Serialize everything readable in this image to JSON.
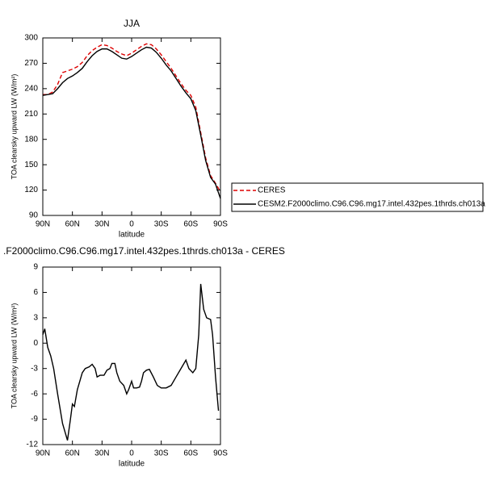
{
  "chart_data": [
    {
      "type": "line",
      "title": "JJA",
      "xlabel": "latitude",
      "ylabel": "TOA clearsky upward LW (W/m²)",
      "x": [
        90,
        85,
        80,
        75,
        70,
        65,
        60,
        55,
        50,
        45,
        40,
        35,
        30,
        25,
        20,
        15,
        10,
        5,
        0,
        -5,
        -10,
        -15,
        -20,
        -25,
        -30,
        -35,
        -40,
        -45,
        -50,
        -55,
        -60,
        -65,
        -70,
        -75,
        -80,
        -85,
        -90
      ],
      "series": [
        {
          "name": "CERES",
          "color": "#dd0000",
          "dashed": true,
          "values": [
            233,
            233,
            236,
            245,
            259,
            261,
            263,
            266,
            271,
            279,
            285,
            289,
            292,
            291,
            288,
            284,
            281,
            279,
            282,
            286,
            290,
            293,
            292,
            287,
            280,
            272,
            264,
            255,
            246,
            238,
            232,
            218,
            188,
            158,
            137,
            128,
            118
          ]
        },
        {
          "name": "CESM2.F2000climo.C96.C96.mg17.intel.432pes.1thrds.ch013a",
          "color": "#000000",
          "dashed": false,
          "values": [
            232,
            233,
            234,
            240,
            247,
            252,
            255,
            259,
            264,
            272,
            279,
            284,
            287,
            287,
            284,
            280,
            276,
            275,
            278,
            282,
            286,
            289,
            288,
            283,
            276,
            268,
            261,
            252,
            243,
            235,
            228,
            214,
            185,
            155,
            135,
            127,
            110
          ]
        }
      ],
      "xlim": [
        90,
        -90
      ],
      "xticks": [
        {
          "value": 90,
          "label": "90N"
        },
        {
          "value": 60,
          "label": "60N"
        },
        {
          "value": 30,
          "label": "30N"
        },
        0,
        {
          "value": -30,
          "label": "30S"
        },
        {
          "value": -60,
          "label": "60S"
        },
        {
          "value": -90,
          "label": "90S"
        }
      ],
      "ylim": [
        90,
        300
      ],
      "yticks": [
        90,
        120,
        150,
        180,
        210,
        240,
        270,
        300
      ],
      "legend": "outside-right"
    },
    {
      "type": "line",
      "title": ".F2000climo.C96.C96.mg17.intel.432pes.1thrds.ch013a - CERES",
      "xlabel": "latitude",
      "ylabel": "TOA clearsky upward LW (W/m²)",
      "x": [
        90,
        88,
        85,
        82,
        79,
        75,
        70,
        65,
        62,
        60,
        58,
        55,
        50,
        47,
        43,
        40,
        37,
        35,
        32,
        28,
        25,
        22,
        20,
        17,
        15,
        12,
        8,
        5,
        3,
        0,
        -2,
        -5,
        -8,
        -10,
        -12,
        -15,
        -18,
        -22,
        -26,
        -30,
        -35,
        -40,
        -45,
        -50,
        -55,
        -58,
        -62,
        -65,
        -68,
        -70,
        -73,
        -76,
        -80,
        -82,
        -85,
        -88
      ],
      "series": [
        {
          "color": "#000000",
          "dashed": false,
          "values": [
            1.0,
            1.7,
            -0.5,
            -1.5,
            -3,
            -6,
            -9.5,
            -11.5,
            -9,
            -7.2,
            -7.5,
            -5.5,
            -3.5,
            -3.0,
            -2.8,
            -2.5,
            -3,
            -4,
            -3.8,
            -3.8,
            -3.2,
            -3.0,
            -2.4,
            -2.4,
            -3.5,
            -4.5,
            -5,
            -6,
            -5.5,
            -4.5,
            -5.3,
            -5.3,
            -5.2,
            -4.5,
            -3.5,
            -3.2,
            -3.1,
            -4,
            -5,
            -5.3,
            -5.3,
            -5,
            -4,
            -3,
            -2,
            -3,
            -3.5,
            -3.0,
            1,
            7,
            4,
            3,
            2.8,
            1,
            -4,
            -8
          ]
        }
      ],
      "xlim": [
        90,
        -90
      ],
      "xticks": [
        {
          "value": 90,
          "label": "90N"
        },
        {
          "value": 60,
          "label": "60N"
        },
        {
          "value": 30,
          "label": "30N"
        },
        0,
        {
          "value": -30,
          "label": "30S"
        },
        {
          "value": -60,
          "label": "60S"
        },
        {
          "value": -90,
          "label": "90S"
        }
      ],
      "ylim": [
        -12,
        9
      ],
      "yticks": [
        -12,
        -9,
        -6,
        -3,
        0,
        3,
        6,
        9
      ]
    }
  ]
}
